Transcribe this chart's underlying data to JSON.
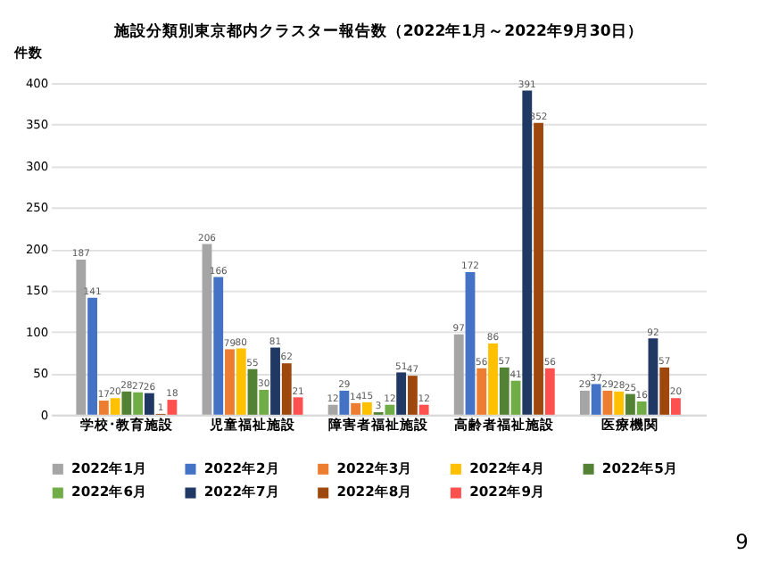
{
  "chart_data": {
    "type": "bar",
    "title": "施設分類別東京都内クラスター報告数（2022年1月～2022年9月30日）",
    "ylabel": "件数",
    "categories": [
      "学校･教育施設",
      "児童福祉施設",
      "障害者福祉施設",
      "高齢者福祉施設",
      "医療機関"
    ],
    "series": [
      {
        "name": "2022年1月",
        "color": "#a5a5a5",
        "values": [
          187,
          206,
          12,
          97,
          29
        ]
      },
      {
        "name": "2022年2月",
        "color": "#4472c4",
        "values": [
          141,
          166,
          29,
          172,
          37
        ]
      },
      {
        "name": "2022年3月",
        "color": "#ed7d31",
        "values": [
          17,
          79,
          14,
          56,
          29
        ]
      },
      {
        "name": "2022年4月",
        "color": "#ffc000",
        "values": [
          20,
          80,
          15,
          86,
          28
        ]
      },
      {
        "name": "2022年5月",
        "color": "#548235",
        "values": [
          28,
          55,
          3,
          57,
          25
        ]
      },
      {
        "name": "2022年6月",
        "color": "#70ad47",
        "values": [
          27,
          30,
          12,
          41,
          16
        ]
      },
      {
        "name": "2022年7月",
        "color": "#203864",
        "values": [
          26,
          81,
          51,
          391,
          92
        ]
      },
      {
        "name": "2022年8月",
        "color": "#9e480e",
        "values": [
          1,
          62,
          47,
          352,
          57
        ]
      },
      {
        "name": "2022年9月",
        "color": "#ff5050",
        "values": [
          18,
          21,
          12,
          56,
          20
        ]
      }
    ],
    "ylim": [
      0,
      400
    ],
    "yticks": [
      0,
      50,
      100,
      150,
      200,
      250,
      300,
      350,
      400
    ],
    "grid": "y",
    "legend": "bottom",
    "data_labels": true,
    "annotations": [
      "9"
    ]
  }
}
